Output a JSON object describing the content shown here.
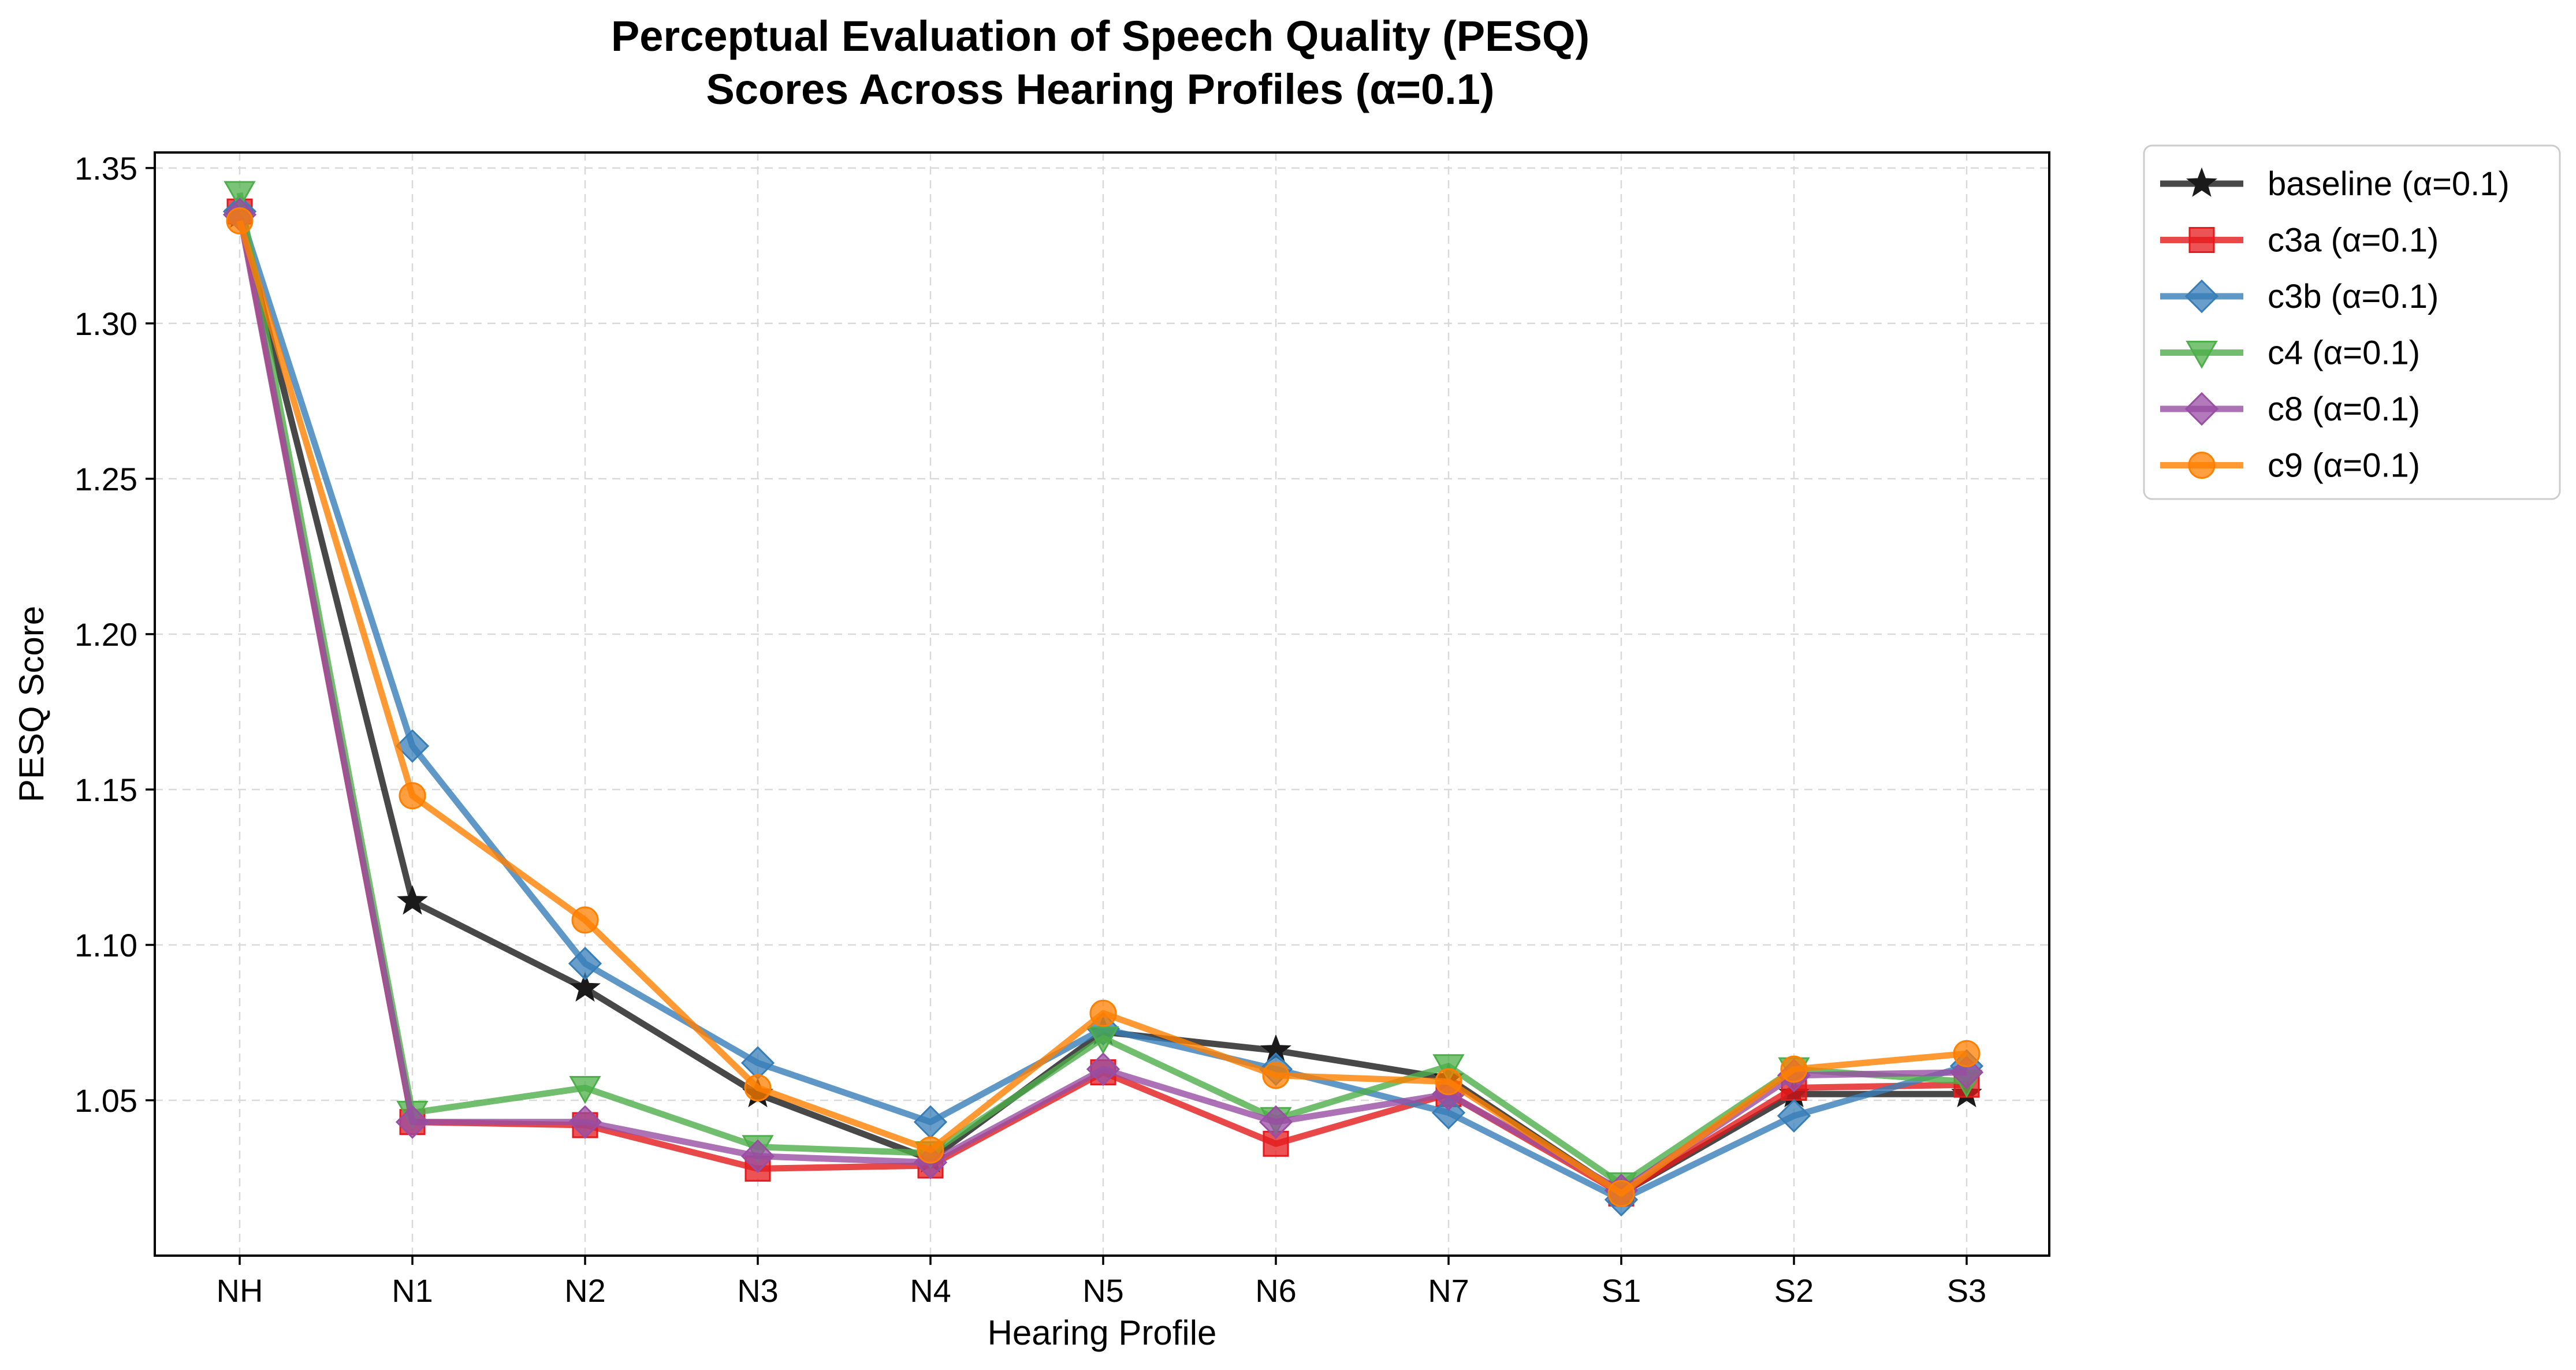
{
  "chart_data": {
    "type": "line",
    "title_lines": [
      "Perceptual Evaluation of Speech Quality (PESQ)",
      "Scores Across Hearing Profiles (α=0.1)"
    ],
    "xlabel": "Hearing Profile",
    "ylabel": "PESQ Score",
    "categories": [
      "NH",
      "N1",
      "N2",
      "N3",
      "N4",
      "N5",
      "N6",
      "N7",
      "S1",
      "S2",
      "S3"
    ],
    "ylim": [
      1.0,
      1.355
    ],
    "yticks": [
      1.05,
      1.1,
      1.15,
      1.2,
      1.25,
      1.3,
      1.35
    ],
    "ytick_labels": [
      "1.05",
      "1.10",
      "1.15",
      "1.20",
      "1.25",
      "1.30",
      "1.35"
    ],
    "grid": true,
    "legend_position": "outside-right",
    "series": [
      {
        "name": "baseline (α=0.1)",
        "color": "#1a1a1a",
        "marker": "star",
        "values": [
          1.335,
          1.114,
          1.086,
          1.052,
          1.031,
          1.072,
          1.066,
          1.057,
          1.02,
          1.052,
          1.052
        ]
      },
      {
        "name": "c3a (α=0.1)",
        "color": "#e41a1c",
        "marker": "square",
        "values": [
          1.336,
          1.043,
          1.042,
          1.028,
          1.029,
          1.059,
          1.036,
          1.052,
          1.02,
          1.054,
          1.055
        ]
      },
      {
        "name": "c3b (α=0.1)",
        "color": "#377eb8",
        "marker": "diamond",
        "values": [
          1.336,
          1.164,
          1.094,
          1.062,
          1.043,
          1.073,
          1.06,
          1.046,
          1.018,
          1.045,
          1.061
        ]
      },
      {
        "name": "c4 (α=0.1)",
        "color": "#4daf4a",
        "marker": "triangle-down",
        "values": [
          1.342,
          1.046,
          1.054,
          1.035,
          1.033,
          1.07,
          1.044,
          1.061,
          1.023,
          1.06,
          1.056
        ]
      },
      {
        "name": "c8 (α=0.1)",
        "color": "#984ea3",
        "marker": "diamond",
        "values": [
          1.335,
          1.043,
          1.043,
          1.032,
          1.03,
          1.06,
          1.043,
          1.052,
          1.021,
          1.058,
          1.059
        ]
      },
      {
        "name": "c9 (α=0.1)",
        "color": "#ff7f00",
        "marker": "circle",
        "values": [
          1.333,
          1.148,
          1.108,
          1.054,
          1.034,
          1.078,
          1.058,
          1.056,
          1.02,
          1.06,
          1.065
        ]
      }
    ]
  }
}
